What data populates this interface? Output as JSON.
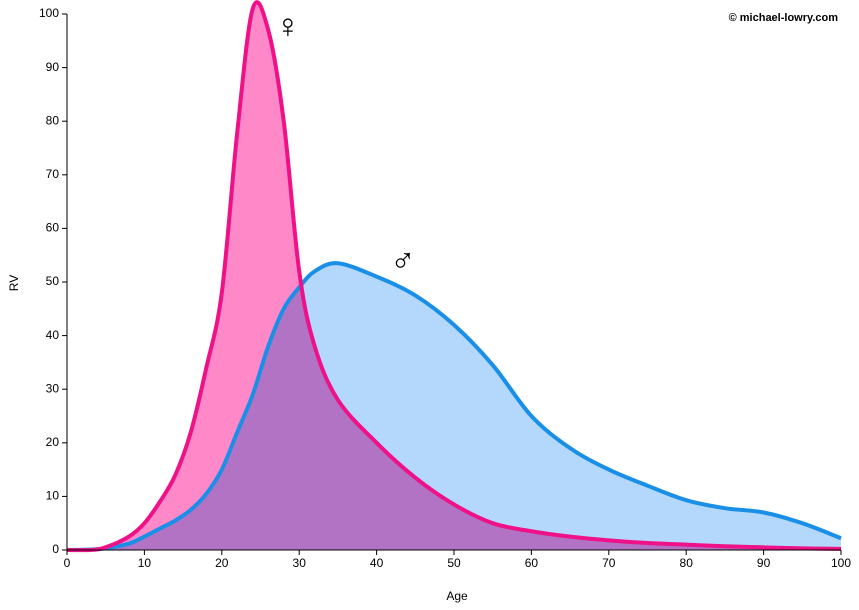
{
  "chart_data": {
    "type": "area",
    "xlabel": "Age",
    "ylabel": "RV",
    "credit": "© michael-lowry.com",
    "x": [
      0,
      3,
      5,
      8,
      10,
      12,
      14,
      16,
      18,
      20,
      22,
      24,
      26,
      28,
      30,
      32,
      35,
      40,
      45,
      50,
      55,
      60,
      65,
      70,
      75,
      80,
      85,
      90,
      95,
      100
    ],
    "series": [
      {
        "name": "♂",
        "color": "#1a8fe8",
        "fill": "#b3d8fb",
        "values": [
          0,
          0.1,
          0.3,
          1.2,
          2.5,
          4,
          5.5,
          7.5,
          10.5,
          15,
          22,
          29,
          38,
          45,
          49,
          52,
          53.5,
          51,
          47.5,
          42,
          34.5,
          25,
          19,
          15,
          12,
          9.3,
          7.8,
          7,
          5,
          2.2
        ]
      },
      {
        "name": "♀",
        "color": "#ee1188",
        "fill": "#ff88c8",
        "values": [
          0,
          0,
          0.5,
          2.5,
          5,
          9,
          14,
          22,
          34,
          48,
          78,
          101,
          97,
          80,
          52,
          38,
          28,
          20,
          13.5,
          8.5,
          5,
          3.5,
          2.5,
          1.8,
          1.3,
          1,
          0.7,
          0.5,
          0.3,
          0.2
        ]
      }
    ],
    "xlim": [
      0,
      100
    ],
    "xticks": [
      0,
      10,
      20,
      30,
      40,
      50,
      60,
      70,
      80,
      90,
      100
    ],
    "ylim": [
      0,
      100
    ],
    "yticks": [
      0,
      10,
      20,
      30,
      40,
      50,
      60,
      70,
      80,
      90,
      100
    ]
  }
}
